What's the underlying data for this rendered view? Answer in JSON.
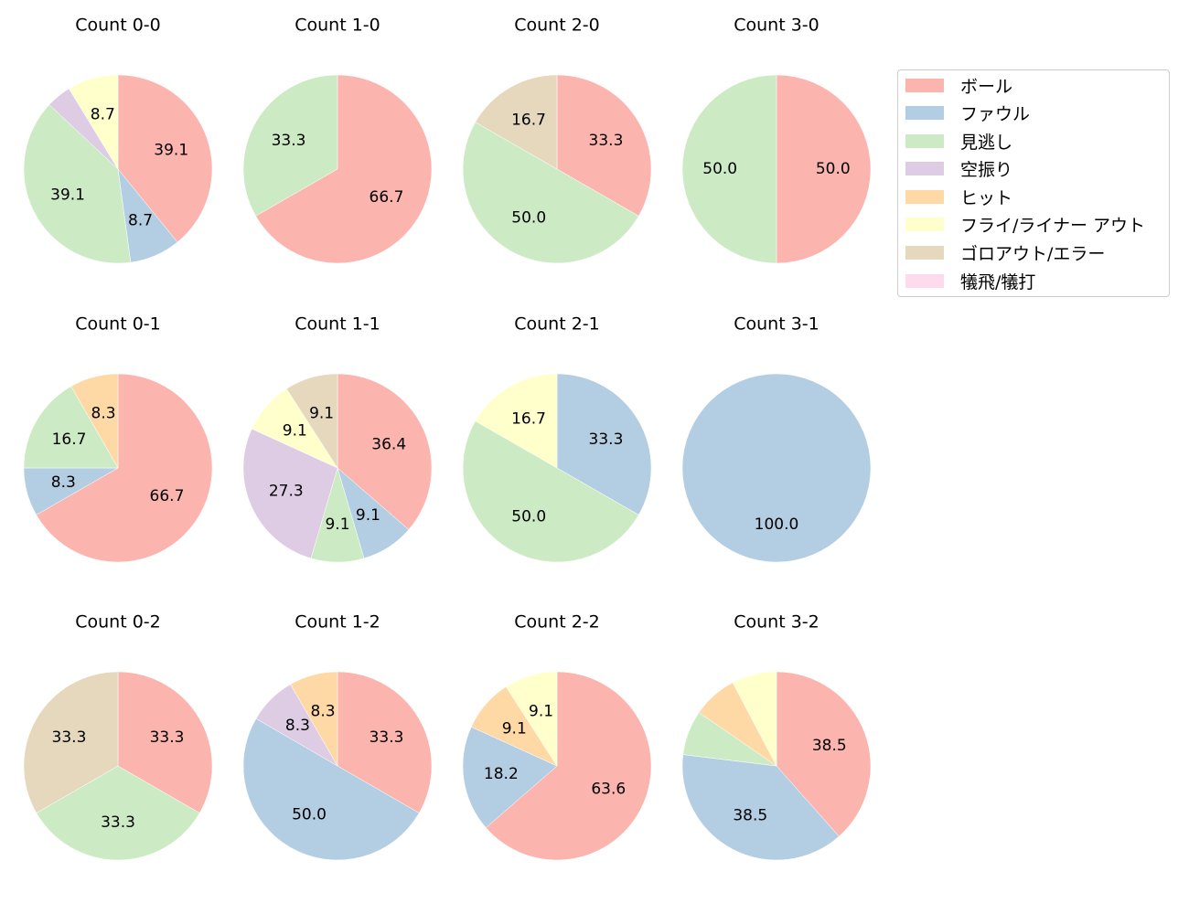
{
  "chart_data": {
    "type": "pie",
    "layout": {
      "rows": 3,
      "cols": 4,
      "start_angle": 90,
      "direction": "clockwise",
      "label_format": "%.1f",
      "min_label_pct": 5
    },
    "legend": {
      "position": "upper right",
      "entries": [
        {
          "label": "ボール",
          "color": "#fbb4ae"
        },
        {
          "label": "ファウル",
          "color": "#b3cde3"
        },
        {
          "label": "見逃し",
          "color": "#ccebc5"
        },
        {
          "label": "空振り",
          "color": "#decbe4"
        },
        {
          "label": "ヒット",
          "color": "#fed9a6"
        },
        {
          "label": "フライ/ライナー アウト",
          "color": "#ffffcc"
        },
        {
          "label": "ゴロアウト/エラー",
          "color": "#e5d8bd"
        },
        {
          "label": "犠飛/犠打",
          "color": "#fddaec"
        }
      ]
    },
    "categories": [
      "ボール",
      "ファウル",
      "見逃し",
      "空振り",
      "ヒット",
      "フライ/ライナー アウト",
      "ゴロアウト/エラー",
      "犠飛/犠打"
    ],
    "pies": [
      {
        "title": "Count 0-0",
        "row": 0,
        "col": 0,
        "values": [
          39.1,
          8.7,
          39.1,
          4.3,
          0,
          8.7,
          0,
          0
        ],
        "labels": [
          "39.1",
          "8.7",
          "39.1",
          "",
          "",
          "8.7",
          "",
          ""
        ]
      },
      {
        "title": "Count 1-0",
        "row": 0,
        "col": 1,
        "values": [
          66.7,
          0,
          33.3,
          0,
          0,
          0,
          0,
          0
        ],
        "labels": [
          "66.7",
          "",
          "33.3",
          "",
          "",
          "",
          "",
          ""
        ]
      },
      {
        "title": "Count 2-0",
        "row": 0,
        "col": 2,
        "values": [
          33.3,
          0,
          50.0,
          0,
          0,
          0,
          16.7,
          0
        ],
        "labels": [
          "33.3",
          "",
          "50.0",
          "",
          "",
          "",
          "16.7",
          ""
        ]
      },
      {
        "title": "Count 3-0",
        "row": 0,
        "col": 3,
        "values": [
          50.0,
          0,
          50.0,
          0,
          0,
          0,
          0,
          0
        ],
        "labels": [
          "50.0",
          "",
          "50.0",
          "",
          "",
          "",
          "",
          ""
        ]
      },
      {
        "title": "Count 0-1",
        "row": 1,
        "col": 0,
        "values": [
          66.7,
          8.3,
          16.7,
          0,
          8.3,
          0,
          0,
          0
        ],
        "labels": [
          "66.7",
          "8.3",
          "16.7",
          "",
          "8.3",
          "",
          "",
          ""
        ]
      },
      {
        "title": "Count 1-1",
        "row": 1,
        "col": 1,
        "values": [
          36.4,
          9.1,
          9.1,
          27.3,
          0,
          9.1,
          9.1,
          0
        ],
        "labels": [
          "36.4",
          "9.1",
          "9.1",
          "27.3",
          "",
          "9.1",
          "9.1",
          ""
        ]
      },
      {
        "title": "Count 2-1",
        "row": 1,
        "col": 2,
        "values": [
          0,
          33.3,
          50.0,
          0,
          0,
          16.7,
          0,
          0
        ],
        "labels": [
          "",
          "33.3",
          "50.0",
          "",
          "",
          "16.7",
          "",
          ""
        ]
      },
      {
        "title": "Count 3-1",
        "row": 1,
        "col": 3,
        "values": [
          0,
          100.0,
          0,
          0,
          0,
          0,
          0,
          0
        ],
        "labels": [
          "",
          "100.0",
          "",
          "",
          "",
          "",
          "",
          ""
        ]
      },
      {
        "title": "Count 0-2",
        "row": 2,
        "col": 0,
        "values": [
          33.3,
          0,
          33.3,
          0,
          0,
          0,
          33.3,
          0
        ],
        "labels": [
          "33.3",
          "",
          "33.3",
          "",
          "",
          "",
          "33.3",
          ""
        ]
      },
      {
        "title": "Count 1-2",
        "row": 2,
        "col": 1,
        "values": [
          33.3,
          50.0,
          0,
          8.3,
          8.3,
          0,
          0,
          0
        ],
        "labels": [
          "33.3",
          "50.0",
          "",
          "8.3",
          "8.3",
          "",
          "",
          ""
        ]
      },
      {
        "title": "Count 2-2",
        "row": 2,
        "col": 2,
        "values": [
          63.6,
          18.2,
          0,
          0,
          9.1,
          9.1,
          0,
          0
        ],
        "labels": [
          "63.6",
          "18.2",
          "",
          "",
          "9.1",
          "9.1",
          "",
          ""
        ]
      },
      {
        "title": "Count 3-2",
        "row": 2,
        "col": 3,
        "values": [
          38.5,
          38.5,
          7.7,
          0,
          7.7,
          7.7,
          0,
          0
        ],
        "labels": [
          "38.5",
          "38.5",
          "",
          "",
          "",
          "",
          "",
          ""
        ]
      }
    ]
  }
}
